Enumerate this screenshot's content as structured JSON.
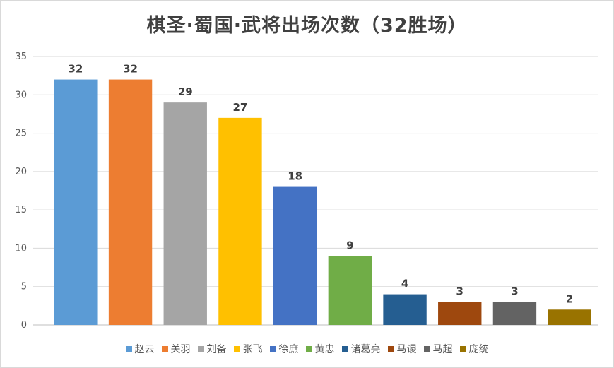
{
  "chart_data": {
    "type": "bar",
    "title": "棋圣·蜀国·武将出场次数（32胜场）",
    "categories": [
      "赵云",
      "关羽",
      "刘备",
      "张飞",
      "徐庶",
      "黄忠",
      "诸葛亮",
      "马谡",
      "马超",
      "庞统"
    ],
    "values": [
      32,
      32,
      29,
      27,
      18,
      9,
      4,
      3,
      3,
      2
    ],
    "colors": [
      "#5b9bd5",
      "#ed7d31",
      "#a5a5a5",
      "#ffc000",
      "#4472c4",
      "#70ad47",
      "#255e91",
      "#9e480e",
      "#636363",
      "#997300"
    ],
    "yticks": [
      0,
      5,
      10,
      15,
      20,
      25,
      30,
      35
    ],
    "ylim": [
      0,
      35
    ],
    "xlabel": "",
    "ylabel": "",
    "grid": true,
    "legend_position": "bottom"
  }
}
